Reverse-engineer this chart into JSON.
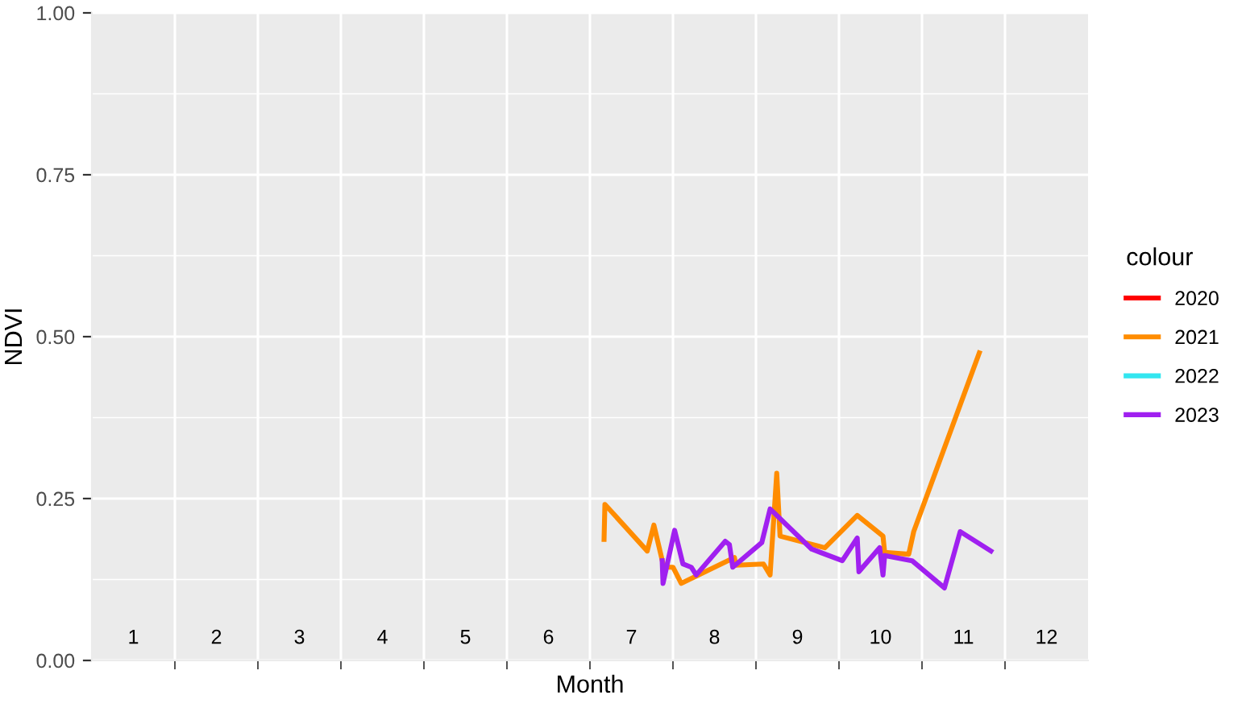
{
  "chart_data": {
    "type": "line",
    "xlabel": "Month",
    "ylabel": "NDVI",
    "legend_title": "colour",
    "legend": "right",
    "grid": true,
    "xlim": [
      0.5,
      12.5
    ],
    "xticks": [
      1,
      2,
      3,
      4,
      5,
      6,
      7,
      8,
      9,
      10,
      11,
      12,
      {
        "value": 1.5,
        "label": null
      },
      {
        "value": 2.5,
        "label": null
      },
      {
        "value": 3.5,
        "label": null
      },
      {
        "value": 4.5,
        "label": null
      },
      {
        "value": 5.5,
        "label": null
      },
      {
        "value": 6.5,
        "label": null
      },
      {
        "value": 7.5,
        "label": null
      },
      {
        "value": 8.5,
        "label": null
      },
      {
        "value": 9.5,
        "label": null
      },
      {
        "value": 10.5,
        "label": null
      },
      {
        "value": 11.5,
        "label": null
      }
    ],
    "ylim": [
      0,
      1
    ],
    "yticks": [
      {
        "value": 0,
        "label": "0.00"
      },
      {
        "value": 0.25,
        "label": "0.25"
      },
      {
        "value": 0.5,
        "label": "0.50"
      },
      {
        "value": 0.75,
        "label": "0.75"
      },
      {
        "value": 1,
        "label": "1.00"
      }
    ],
    "series": [
      {
        "name": "2020",
        "color": "#ff0000"
      },
      {
        "name": "2021",
        "color": "#ff8c00",
        "x": [
          6.67,
          6.68,
          7.19,
          7.27,
          7.39,
          7.5,
          7.6,
          8.24,
          8.26,
          8.59,
          8.67,
          8.75,
          8.79,
          9.33,
          9.72,
          10.03,
          10.05,
          10.34,
          10.4,
          11.19
        ],
        "values": [
          0.187,
          0.241,
          0.169,
          0.209,
          0.144,
          0.144,
          0.119,
          0.159,
          0.147,
          0.149,
          0.132,
          0.289,
          0.192,
          0.174,
          0.224,
          0.192,
          0.167,
          0.164,
          0.199,
          0.475
        ]
      },
      {
        "name": "2022",
        "color": "#33e6f0"
      },
      {
        "name": "2023",
        "color": "#a020f0",
        "x": [
          7.37,
          7.38,
          7.52,
          7.62,
          7.72,
          7.78,
          8.13,
          8.18,
          8.22,
          8.57,
          8.67,
          9.17,
          9.54,
          9.72,
          9.74,
          9.99,
          10.03,
          10.05,
          10.38,
          10.77,
          10.96,
          11.33
        ],
        "values": [
          0.154,
          0.119,
          0.201,
          0.149,
          0.144,
          0.132,
          0.184,
          0.179,
          0.144,
          0.182,
          0.234,
          0.172,
          0.154,
          0.189,
          0.137,
          0.174,
          0.132,
          0.162,
          0.154,
          0.112,
          0.199,
          0.169
        ]
      }
    ]
  }
}
